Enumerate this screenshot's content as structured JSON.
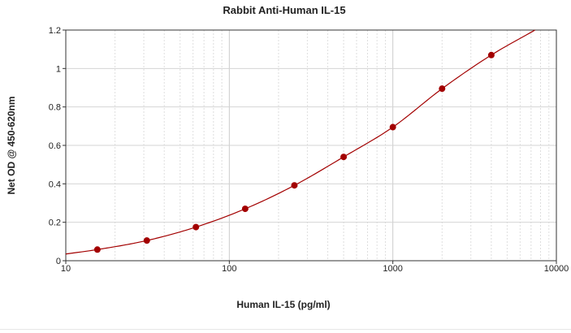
{
  "chart_data": {
    "type": "scatter",
    "title": "Rabbit Anti-Human IL-15",
    "xlabel": "Human IL-15 (pg/ml)",
    "ylabel": "Net OD @ 450-620nm",
    "xscale": "log",
    "xlim": [
      10,
      10000
    ],
    "ylim": [
      0,
      1.2
    ],
    "x_ticks": [
      10,
      100,
      1000,
      10000
    ],
    "x_tick_labels": [
      "10",
      "100",
      "1000",
      "10000"
    ],
    "y_ticks": [
      0,
      0.2,
      0.4,
      0.6,
      0.8,
      1.0,
      1.2
    ],
    "y_tick_labels": [
      "0",
      "0.2",
      "0.4",
      "0.6",
      "0.8",
      "1",
      "1.2"
    ],
    "grid": true,
    "series": [
      {
        "type": "scatter",
        "x": [
          15.6,
          31.3,
          62.5,
          125,
          250,
          500,
          1000,
          2000,
          4000
        ],
        "y": [
          0.058,
          0.105,
          0.175,
          0.27,
          0.392,
          0.54,
          0.695,
          0.895,
          1.07
        ],
        "color": "#a30000"
      },
      {
        "type": "line",
        "fit": "curve",
        "x": [
          10,
          15.6,
          31.3,
          62.5,
          125,
          250,
          500,
          1000,
          2000,
          4000,
          7400
        ],
        "y": [
          0.035,
          0.058,
          0.105,
          0.175,
          0.27,
          0.392,
          0.54,
          0.695,
          0.895,
          1.07,
          1.2
        ],
        "color": "#a30000"
      }
    ]
  }
}
